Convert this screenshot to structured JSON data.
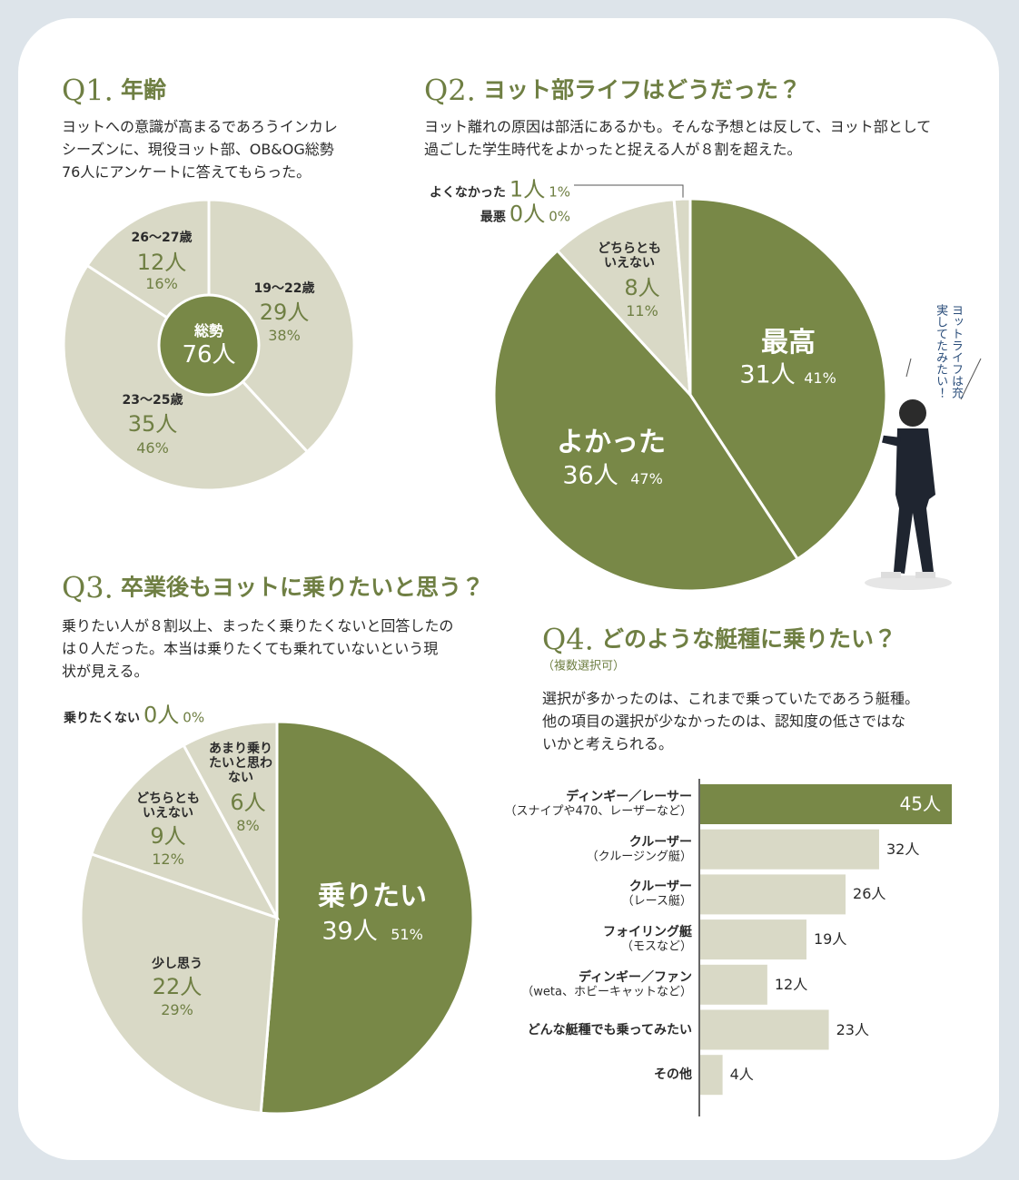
{
  "chart_data": [
    {
      "type": "pie",
      "number": "Q1.",
      "title": "年齢",
      "description": [
        "ヨットへの意識が高まるであろうインカレ",
        "シーズンに、現役ヨット部、OB&OG総勢",
        "76人にアンケートに答えてもらった。"
      ],
      "categories": [
        "19〜22歳",
        "23〜25歳",
        "26〜27歳"
      ],
      "values": [
        29,
        35,
        12
      ],
      "value_labels": [
        "29人",
        "35人",
        "12人"
      ],
      "percent_labels": [
        "38%",
        "46%",
        "16%"
      ],
      "colors": [
        "#d9d9c6",
        "#d9d9c6",
        "#d9d9c6"
      ],
      "center_label": "総勢",
      "total": 76,
      "total_label": "76人",
      "center_color": "#788847"
    },
    {
      "type": "pie",
      "number": "Q2.",
      "title": "ヨット部ライフはどうだった？",
      "description": [
        "ヨット離れの原因は部活にあるかも。そんな予想とは反して、ヨット部として",
        "過ごした学生時代をよかったと捉える人が８割を超えた。"
      ],
      "categories": [
        "最高",
        "よかった",
        "どちらともいえない",
        "よくなかった",
        "最悪"
      ],
      "values": [
        31,
        36,
        8,
        1,
        0
      ],
      "value_labels": [
        "31人",
        "36人",
        "8人",
        "1人",
        "0人"
      ],
      "percent_labels": [
        "41%",
        "47%",
        "11%",
        "1%",
        "0%"
      ],
      "colors": [
        "#788847",
        "#788847",
        "#d9d9c6",
        "#d9d9c6",
        "#d9d9c6"
      ],
      "annotation": "ヨットライフは充実してたみたい！"
    },
    {
      "type": "pie",
      "number": "Q3.",
      "title": "卒業後もヨットに乗りたいと思う？",
      "description": [
        "乗りたい人が８割以上、まったく乗りたくないと回答したの",
        "は０人だった。本当は乗りたくても乗れていないという現",
        "状が見える。"
      ],
      "categories": [
        "乗りたい",
        "少し思う",
        "どちらともいえない",
        "あまり乗りたいと思わない",
        "乗りたくない"
      ],
      "values": [
        39,
        22,
        9,
        6,
        0
      ],
      "value_labels": [
        "39人",
        "22人",
        "9人",
        "6人",
        "0人"
      ],
      "percent_labels": [
        "51%",
        "29%",
        "12%",
        "8%",
        "0%"
      ],
      "colors": [
        "#788847",
        "#d9d9c6",
        "#d9d9c6",
        "#d9d9c6",
        "#d9d9c6"
      ]
    },
    {
      "type": "hbar",
      "number": "Q4.",
      "title": "どのような艇種に乗りたい？",
      "subtitle": "（複数選択可）",
      "description": [
        "選択が多かったのは、これまで乗っていたであろう艇種。",
        "他の項目の選択が少なかったのは、認知度の低さではな",
        "いかと考えられる。"
      ],
      "categories": [
        "ディンギー／レーサー",
        "クルーザー",
        "クルーザー",
        "フォイリング艇",
        "ディンギー／ファン",
        "どんな艇種でも乗ってみたい",
        "その他"
      ],
      "notes": [
        "（スナイプや470、レーザーなど）",
        "（クルージング艇）",
        "（レース艇）",
        "（モスなど）",
        "（weta、ホビーキャットなど）",
        null,
        null
      ],
      "values": [
        45,
        32,
        26,
        19,
        12,
        23,
        4
      ],
      "value_labels": [
        "45人",
        "32人",
        "26人",
        "19人",
        "12人",
        "23人",
        "4人"
      ],
      "colors": [
        "#788847",
        "#d9d9c6",
        "#d9d9c6",
        "#d9d9c6",
        "#d9d9c6",
        "#d9d9c6",
        "#d9d9c6"
      ],
      "xlim": [
        0,
        45
      ]
    }
  ]
}
